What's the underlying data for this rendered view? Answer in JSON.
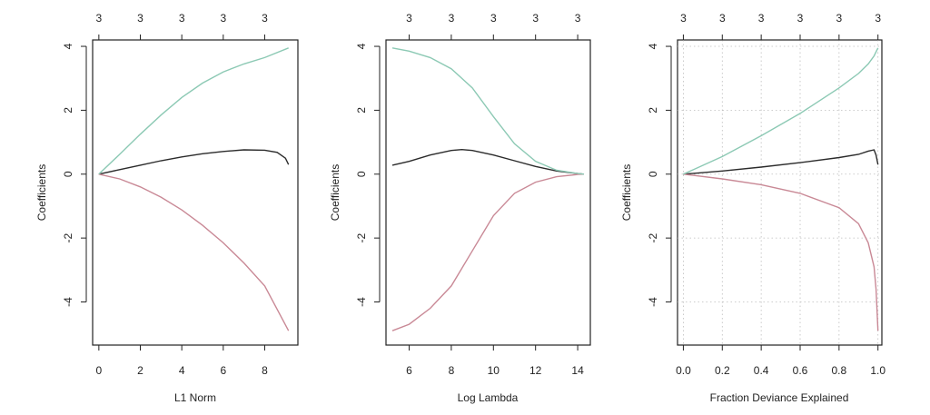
{
  "colors": {
    "background": "#ffffff",
    "axis": "#222222",
    "series_1": "#2b2b2b",
    "series_2": "#c98996",
    "series_3": "#8cc9b4"
  },
  "chart_data": [
    {
      "type": "line",
      "xlabel": "L1 Norm",
      "ylabel": "Coefficients",
      "xlim": [
        -0.3,
        9.6
      ],
      "ylim": [
        -5.35,
        4.2
      ],
      "xticks": [
        0,
        2,
        4,
        6,
        8
      ],
      "yticks": [
        -4,
        -2,
        0,
        2,
        4
      ],
      "top_ticks": [
        0,
        2,
        4,
        6,
        8
      ],
      "top_tick_labels": [
        "3",
        "3",
        "3",
        "3",
        "3"
      ],
      "grid": false,
      "series": [
        {
          "color": "#2b2b2b",
          "x": [
            0,
            1,
            2,
            3,
            4,
            5,
            6,
            7,
            8,
            8.6,
            9.0,
            9.15
          ],
          "y": [
            0,
            0.14,
            0.28,
            0.42,
            0.54,
            0.64,
            0.71,
            0.76,
            0.75,
            0.68,
            0.5,
            0.3
          ]
        },
        {
          "color": "#c98996",
          "x": [
            0,
            1,
            2,
            3,
            4,
            5,
            6,
            7,
            8,
            9.15
          ],
          "y": [
            0,
            -0.15,
            -0.4,
            -0.72,
            -1.12,
            -1.6,
            -2.15,
            -2.78,
            -3.5,
            -4.9
          ]
        },
        {
          "color": "#8cc9b4",
          "x": [
            0,
            1,
            2,
            3,
            4,
            5,
            6,
            7,
            8,
            9.15
          ],
          "y": [
            0,
            0.62,
            1.25,
            1.85,
            2.4,
            2.85,
            3.2,
            3.45,
            3.65,
            3.95
          ]
        }
      ]
    },
    {
      "type": "line",
      "xlabel": "Log Lambda",
      "ylabel": "Coefficients",
      "xlim": [
        4.9,
        14.6
      ],
      "ylim": [
        -5.35,
        4.2
      ],
      "xticks": [
        6,
        8,
        10,
        12,
        14
      ],
      "yticks": [
        -4,
        -2,
        0,
        2,
        4
      ],
      "top_ticks": [
        6,
        8,
        10,
        12,
        14
      ],
      "top_tick_labels": [
        "3",
        "3",
        "3",
        "3",
        "3"
      ],
      "grid": false,
      "series": [
        {
          "color": "#2b2b2b",
          "x": [
            5.2,
            6,
            7,
            8,
            8.5,
            9,
            10,
            11,
            12,
            13,
            14,
            14.3
          ],
          "y": [
            0.28,
            0.4,
            0.6,
            0.74,
            0.77,
            0.74,
            0.6,
            0.42,
            0.24,
            0.1,
            0.02,
            0.0
          ]
        },
        {
          "color": "#c98996",
          "x": [
            5.2,
            6,
            7,
            8,
            9,
            10,
            11,
            12,
            13,
            14,
            14.3
          ],
          "y": [
            -4.9,
            -4.7,
            -4.2,
            -3.5,
            -2.4,
            -1.3,
            -0.6,
            -0.25,
            -0.08,
            -0.01,
            0.0
          ]
        },
        {
          "color": "#8cc9b4",
          "x": [
            5.2,
            6,
            7,
            8,
            9,
            10,
            11,
            12,
            13,
            14,
            14.3
          ],
          "y": [
            3.95,
            3.85,
            3.65,
            3.3,
            2.7,
            1.8,
            0.95,
            0.4,
            0.12,
            0.02,
            0.0
          ]
        }
      ]
    },
    {
      "type": "line",
      "xlabel": "Fraction Deviance Explained",
      "ylabel": "Coefficients",
      "xlim": [
        -0.03,
        1.02
      ],
      "ylim": [
        -5.35,
        4.2
      ],
      "xticks": [
        0,
        0.2,
        0.4,
        0.6,
        0.8,
        1
      ],
      "xtick_labels": [
        "0.0",
        "0.2",
        "0.4",
        "0.6",
        "0.8",
        "1.0"
      ],
      "yticks": [
        -4,
        -2,
        0,
        2,
        4
      ],
      "top_ticks": [
        0,
        0.2,
        0.4,
        0.6,
        0.8,
        1
      ],
      "top_tick_labels": [
        "3",
        "3",
        "3",
        "3",
        "3",
        "3"
      ],
      "grid": true,
      "series": [
        {
          "color": "#2b2b2b",
          "x": [
            0,
            0.2,
            0.4,
            0.6,
            0.8,
            0.9,
            0.95,
            0.98,
            0.99,
            1.0
          ],
          "y": [
            0,
            0.1,
            0.22,
            0.36,
            0.52,
            0.62,
            0.72,
            0.76,
            0.6,
            0.3
          ]
        },
        {
          "color": "#c98996",
          "x": [
            0,
            0.2,
            0.4,
            0.6,
            0.8,
            0.9,
            0.95,
            0.98,
            0.99,
            1.0
          ],
          "y": [
            0,
            -0.15,
            -0.33,
            -0.6,
            -1.05,
            -1.55,
            -2.15,
            -2.9,
            -3.6,
            -4.9
          ]
        },
        {
          "color": "#8cc9b4",
          "x": [
            0,
            0.2,
            0.4,
            0.6,
            0.8,
            0.9,
            0.95,
            0.98,
            1.0
          ],
          "y": [
            0,
            0.55,
            1.2,
            1.9,
            2.7,
            3.15,
            3.45,
            3.7,
            3.95
          ]
        }
      ]
    }
  ]
}
